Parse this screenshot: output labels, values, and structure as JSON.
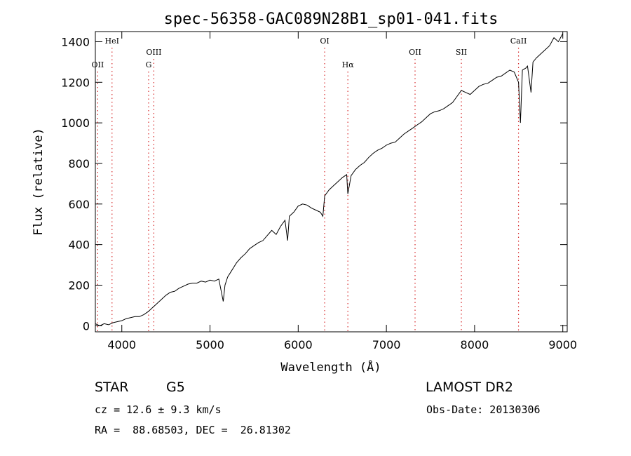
{
  "chart_data": {
    "type": "line",
    "title": "spec-56358-GAC089N28B1_sp01-041.fits",
    "xlabel": "Wavelength (Å)",
    "ylabel": "Flux (relative)",
    "xlim": [
      3700,
      9050
    ],
    "ylim": [
      -30,
      1450
    ],
    "xticks": [
      4000,
      5000,
      6000,
      7000,
      8000,
      9000
    ],
    "yticks": [
      0,
      200,
      400,
      600,
      800,
      1000,
      1200,
      1400
    ],
    "line_color": "#000000",
    "marker_color": "#d62728",
    "series": [
      {
        "x": [
          3700,
          3750,
          3800,
          3850,
          3900,
          3950,
          4000,
          4050,
          4100,
          4150,
          4200,
          4250,
          4300,
          4350,
          4400,
          4450,
          4500,
          4550,
          4600,
          4650,
          4700,
          4750,
          4800,
          4850,
          4900,
          4950,
          5000,
          5050,
          5100,
          5150,
          5170,
          5200,
          5250,
          5300,
          5350,
          5400,
          5450,
          5500,
          5550,
          5600,
          5650,
          5700,
          5750,
          5800,
          5850,
          5880,
          5900,
          5950,
          6000,
          6050,
          6100,
          6150,
          6200,
          6250,
          6280,
          6300,
          6350,
          6400,
          6450,
          6500,
          6550,
          6563,
          6600,
          6650,
          6700,
          6750,
          6800,
          6850,
          6900,
          6950,
          7000,
          7050,
          7100,
          7150,
          7200,
          7250,
          7300,
          7350,
          7400,
          7450,
          7500,
          7550,
          7600,
          7650,
          7700,
          7750,
          7800,
          7850,
          7900,
          7950,
          8000,
          8050,
          8100,
          8150,
          8200,
          8250,
          8300,
          8350,
          8400,
          8450,
          8498,
          8520,
          8542,
          8580,
          8600,
          8640,
          8662,
          8700,
          8750,
          8800,
          8850,
          8900,
          8950,
          9000
        ],
        "y": [
          10,
          0,
          10,
          5,
          15,
          20,
          25,
          35,
          40,
          45,
          45,
          55,
          70,
          90,
          110,
          130,
          150,
          165,
          170,
          185,
          195,
          205,
          210,
          210,
          220,
          215,
          225,
          220,
          230,
          120,
          200,
          240,
          275,
          310,
          335,
          355,
          380,
          395,
          410,
          420,
          445,
          470,
          450,
          490,
          520,
          420,
          540,
          560,
          590,
          600,
          595,
          580,
          570,
          560,
          540,
          640,
          670,
          690,
          710,
          730,
          745,
          650,
          740,
          770,
          790,
          805,
          830,
          850,
          865,
          875,
          890,
          900,
          905,
          925,
          945,
          960,
          975,
          990,
          1005,
          1025,
          1045,
          1055,
          1060,
          1070,
          1085,
          1100,
          1130,
          1160,
          1150,
          1140,
          1160,
          1180,
          1190,
          1195,
          1210,
          1225,
          1230,
          1245,
          1260,
          1250,
          1200,
          1000,
          1260,
          1270,
          1280,
          1150,
          1300,
          1320,
          1340,
          1360,
          1380,
          1420,
          1400,
          1440
        ]
      }
    ],
    "lines": [
      {
        "label": "OII",
        "x": 3727,
        "row": 3
      },
      {
        "label": "HeI",
        "x": 3889,
        "row": 1
      },
      {
        "label": "OIII",
        "x": 4363,
        "row": 2
      },
      {
        "label": "G",
        "x": 4304,
        "row": 3
      },
      {
        "label": "OI",
        "x": 6300,
        "row": 1
      },
      {
        "label": "Hα",
        "x": 6563,
        "row": 3
      },
      {
        "label": "OII",
        "x": 7325,
        "row": 2
      },
      {
        "label": "SII",
        "x": 7850,
        "row": 2
      },
      {
        "label": "CaII",
        "x": 8498,
        "row": 1
      }
    ]
  },
  "info": {
    "object_type": "STAR",
    "subclass": "G5",
    "release": "LAMOST DR2",
    "redshift": "cz = 12.6 ± 9.3 km/s",
    "obs_date": "Obs-Date: 20130306",
    "coords": "RA =  88.68503, DEC =  26.81302"
  }
}
